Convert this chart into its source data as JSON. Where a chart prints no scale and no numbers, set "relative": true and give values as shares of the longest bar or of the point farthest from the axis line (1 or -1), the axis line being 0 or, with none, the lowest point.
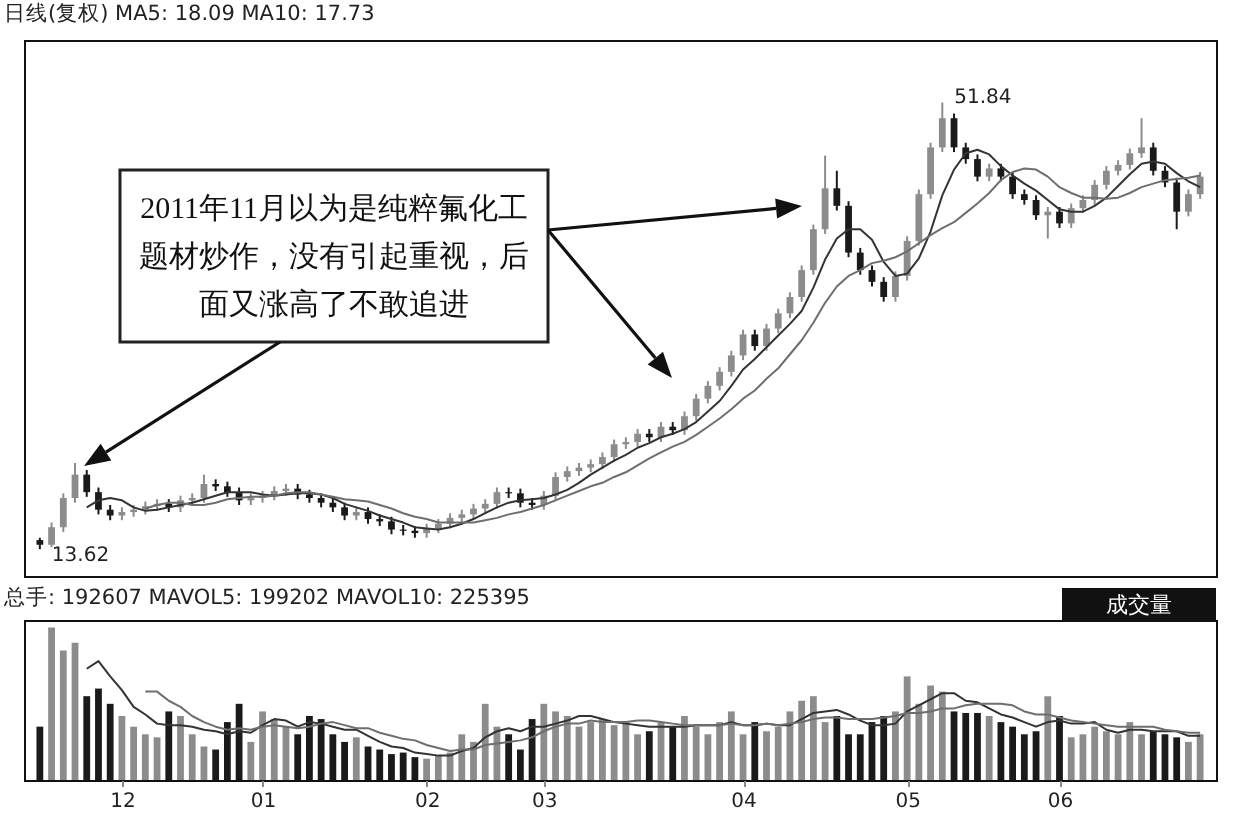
{
  "chart_data": [
    {
      "type": "candlestick",
      "title": "日线(复权) MA5: 18.09 MA10: 17.73",
      "tick_labels": false,
      "categories": [
        null,
        null,
        null,
        null,
        null,
        null,
        null,
        "12",
        null,
        null,
        null,
        null,
        null,
        null,
        null,
        null,
        null,
        null,
        null,
        "01",
        null,
        null,
        null,
        null,
        null,
        null,
        null,
        null,
        null,
        null,
        null,
        null,
        null,
        "02",
        null,
        null,
        null,
        null,
        null,
        null,
        null,
        null,
        null,
        "03",
        null,
        null,
        null,
        null,
        null,
        null,
        null,
        null,
        null,
        null,
        null,
        null,
        null,
        null,
        null,
        null,
        "04",
        null,
        null,
        null,
        null,
        null,
        null,
        null,
        null,
        null,
        null,
        null,
        null,
        null,
        "05",
        null,
        null,
        null,
        null,
        null,
        null,
        null,
        null,
        null,
        null,
        null,
        null,
        "06",
        null,
        null,
        null,
        null,
        null,
        null,
        null,
        null,
        null,
        null,
        null,
        null
      ],
      "ohlc": [
        [
          14.4,
          14.6,
          13.62,
          14.0
        ],
        [
          14.0,
          15.9,
          13.8,
          15.5
        ],
        [
          15.5,
          18.4,
          15.1,
          18.0
        ],
        [
          18.0,
          21.0,
          17.6,
          20.0
        ],
        [
          20.0,
          20.4,
          18.1,
          18.5
        ],
        [
          18.5,
          18.9,
          16.6,
          17.0
        ],
        [
          17.0,
          17.4,
          16.1,
          16.5
        ],
        [
          16.5,
          17.2,
          16.1,
          16.8
        ],
        [
          16.8,
          17.4,
          16.4,
          17.0
        ],
        [
          17.0,
          17.7,
          16.6,
          17.3
        ],
        [
          17.3,
          17.9,
          16.9,
          17.5
        ],
        [
          17.5,
          17.9,
          16.8,
          17.2
        ],
        [
          17.2,
          18.2,
          16.8,
          17.8
        ],
        [
          17.8,
          18.4,
          17.4,
          18.0
        ],
        [
          18.0,
          20.0,
          17.6,
          19.2
        ],
        [
          19.2,
          19.6,
          18.6,
          19.0
        ],
        [
          19.0,
          19.4,
          18.1,
          18.5
        ],
        [
          18.5,
          18.9,
          17.4,
          17.8
        ],
        [
          17.8,
          18.4,
          17.4,
          18.0
        ],
        [
          18.0,
          18.6,
          17.6,
          18.2
        ],
        [
          18.2,
          19.0,
          17.8,
          18.6
        ],
        [
          18.6,
          19.2,
          18.2,
          18.8
        ],
        [
          18.8,
          19.2,
          17.9,
          18.3
        ],
        [
          18.3,
          18.7,
          17.6,
          18.0
        ],
        [
          18.0,
          18.4,
          17.2,
          17.6
        ],
        [
          17.6,
          18.0,
          16.8,
          17.2
        ],
        [
          17.2,
          17.6,
          16.1,
          16.5
        ],
        [
          16.5,
          17.2,
          16.1,
          16.8
        ],
        [
          16.8,
          17.2,
          15.8,
          16.2
        ],
        [
          16.2,
          16.6,
          15.6,
          16.0
        ],
        [
          16.0,
          16.4,
          14.9,
          15.3
        ],
        [
          15.3,
          15.7,
          14.8,
          15.2
        ],
        [
          15.2,
          15.6,
          14.6,
          15.0
        ],
        [
          15.0,
          15.8,
          14.6,
          15.4
        ],
        [
          15.4,
          16.2,
          15.0,
          15.8
        ],
        [
          15.8,
          16.7,
          15.4,
          16.3
        ],
        [
          16.3,
          17.0,
          15.9,
          16.6
        ],
        [
          16.6,
          17.5,
          16.2,
          17.1
        ],
        [
          17.1,
          17.9,
          16.7,
          17.5
        ],
        [
          17.5,
          18.9,
          17.1,
          18.5
        ],
        [
          18.5,
          18.9,
          18.0,
          18.4
        ],
        [
          18.4,
          18.8,
          17.2,
          17.6
        ],
        [
          17.6,
          18.0,
          17.0,
          17.4
        ],
        [
          17.4,
          18.6,
          17.0,
          18.2
        ],
        [
          18.2,
          20.2,
          17.8,
          19.8
        ],
        [
          19.8,
          20.7,
          19.4,
          20.3
        ],
        [
          20.3,
          21.0,
          19.9,
          20.6
        ],
        [
          20.6,
          21.3,
          20.2,
          20.9
        ],
        [
          20.9,
          21.9,
          20.5,
          21.5
        ],
        [
          21.5,
          23.0,
          21.1,
          22.6
        ],
        [
          22.6,
          23.2,
          22.2,
          22.8
        ],
        [
          22.8,
          23.9,
          22.4,
          23.5
        ],
        [
          23.5,
          23.9,
          22.8,
          23.2
        ],
        [
          23.2,
          24.5,
          22.8,
          24.1
        ],
        [
          24.1,
          24.5,
          23.4,
          23.8
        ],
        [
          23.8,
          25.4,
          23.4,
          25.0
        ],
        [
          25.0,
          26.9,
          24.6,
          26.5
        ],
        [
          26.5,
          28.0,
          26.1,
          27.6
        ],
        [
          27.6,
          29.2,
          27.2,
          28.8
        ],
        [
          28.8,
          30.6,
          28.4,
          30.2
        ],
        [
          30.2,
          32.4,
          29.8,
          32.0
        ],
        [
          32.0,
          32.4,
          30.6,
          31.0
        ],
        [
          31.0,
          32.9,
          30.6,
          32.5
        ],
        [
          32.5,
          34.2,
          32.1,
          33.8
        ],
        [
          33.8,
          35.6,
          33.4,
          35.2
        ],
        [
          35.2,
          37.9,
          34.8,
          37.5
        ],
        [
          37.5,
          41.4,
          37.1,
          41.0
        ],
        [
          41.0,
          47.3,
          40.6,
          44.5
        ],
        [
          44.5,
          46.0,
          42.6,
          43.0
        ],
        [
          43.0,
          43.4,
          38.6,
          39.0
        ],
        [
          39.0,
          39.4,
          37.1,
          37.5
        ],
        [
          37.5,
          37.9,
          36.1,
          36.5
        ],
        [
          36.5,
          36.9,
          34.8,
          35.2
        ],
        [
          35.2,
          37.4,
          34.8,
          37.0
        ],
        [
          37.0,
          40.4,
          36.6,
          40.0
        ],
        [
          40.0,
          44.4,
          39.6,
          44.0
        ],
        [
          44.0,
          48.4,
          43.6,
          48.0
        ],
        [
          48.0,
          51.84,
          47.6,
          50.5
        ],
        [
          50.5,
          50.9,
          47.6,
          48.0
        ],
        [
          48.0,
          48.4,
          46.6,
          47.0
        ],
        [
          47.0,
          47.4,
          45.1,
          45.5
        ],
        [
          45.5,
          46.6,
          45.1,
          46.2
        ],
        [
          46.2,
          46.6,
          45.1,
          45.5
        ],
        [
          45.5,
          45.9,
          43.6,
          44.0
        ],
        [
          44.0,
          44.4,
          43.1,
          43.5
        ],
        [
          43.5,
          43.9,
          41.8,
          42.2
        ],
        [
          42.2,
          42.9,
          40.2,
          42.5
        ],
        [
          42.5,
          42.9,
          41.1,
          41.5
        ],
        [
          41.5,
          43.2,
          41.1,
          42.8
        ],
        [
          42.8,
          43.9,
          42.4,
          43.5
        ],
        [
          43.5,
          45.2,
          43.1,
          44.8
        ],
        [
          44.8,
          46.4,
          44.4,
          46.0
        ],
        [
          46.0,
          46.9,
          45.6,
          46.5
        ],
        [
          46.5,
          47.9,
          46.1,
          47.5
        ],
        [
          47.5,
          50.5,
          47.1,
          48.0
        ],
        [
          48.0,
          48.4,
          45.6,
          46.0
        ],
        [
          46.0,
          46.4,
          44.6,
          45.0
        ],
        [
          45.0,
          45.4,
          41.0,
          42.5
        ],
        [
          42.5,
          44.4,
          42.1,
          44.0
        ],
        [
          44.0,
          45.9,
          43.6,
          45.5
        ]
      ],
      "colors": [
        "#1a1a1a",
        "#8c8c8c",
        "#8c8c8c",
        "#8c8c8c",
        "#1a1a1a",
        "#1a1a1a",
        "#1a1a1a",
        "#8c8c8c",
        "#8c8c8c",
        "#8c8c8c",
        "#8c8c8c",
        "#1a1a1a",
        "#8c8c8c",
        "#8c8c8c",
        "#8c8c8c",
        "#1a1a1a",
        "#1a1a1a",
        "#1a1a1a",
        "#8c8c8c",
        "#8c8c8c",
        "#8c8c8c",
        "#8c8c8c",
        "#1a1a1a",
        "#1a1a1a",
        "#1a1a1a",
        "#1a1a1a",
        "#1a1a1a",
        "#8c8c8c",
        "#1a1a1a",
        "#1a1a1a",
        "#1a1a1a",
        "#1a1a1a",
        "#1a1a1a",
        "#8c8c8c",
        "#8c8c8c",
        "#8c8c8c",
        "#8c8c8c",
        "#8c8c8c",
        "#8c8c8c",
        "#8c8c8c",
        "#1a1a1a",
        "#1a1a1a",
        "#1a1a1a",
        "#8c8c8c",
        "#8c8c8c",
        "#8c8c8c",
        "#8c8c8c",
        "#8c8c8c",
        "#8c8c8c",
        "#8c8c8c",
        "#8c8c8c",
        "#8c8c8c",
        "#1a1a1a",
        "#8c8c8c",
        "#1a1a1a",
        "#8c8c8c",
        "#8c8c8c",
        "#8c8c8c",
        "#8c8c8c",
        "#8c8c8c",
        "#8c8c8c",
        "#1a1a1a",
        "#8c8c8c",
        "#8c8c8c",
        "#8c8c8c",
        "#8c8c8c",
        "#8c8c8c",
        "#8c8c8c",
        "#1a1a1a",
        "#1a1a1a",
        "#1a1a1a",
        "#1a1a1a",
        "#1a1a1a",
        "#8c8c8c",
        "#8c8c8c",
        "#8c8c8c",
        "#8c8c8c",
        "#8c8c8c",
        "#1a1a1a",
        "#1a1a1a",
        "#1a1a1a",
        "#8c8c8c",
        "#1a1a1a",
        "#1a1a1a",
        "#1a1a1a",
        "#1a1a1a",
        "#8c8c8c",
        "#1a1a1a",
        "#8c8c8c",
        "#8c8c8c",
        "#8c8c8c",
        "#8c8c8c",
        "#8c8c8c",
        "#8c8c8c",
        "#8c8c8c",
        "#1a1a1a",
        "#1a1a1a",
        "#1a1a1a",
        "#8c8c8c",
        "#8c8c8c"
      ],
      "series": [
        {
          "type": "line",
          "color": "#333333",
          "values": [
            null,
            null,
            null,
            null,
            17.2,
            17.8,
            18.0,
            17.8,
            17.2,
            16.9,
            17.0,
            17.2,
            17.4,
            17.6,
            17.9,
            18.2,
            18.5,
            18.5,
            18.5,
            18.3,
            18.2,
            18.3,
            18.4,
            18.4,
            18.3,
            18.0,
            17.5,
            17.2,
            16.9,
            16.5,
            16.2,
            15.9,
            15.5,
            15.4,
            15.3,
            15.5,
            15.8,
            16.2,
            16.7,
            17.2,
            17.6,
            17.8,
            17.9,
            18.0,
            18.3,
            18.7,
            19.3,
            20.0,
            20.6,
            21.2,
            21.7,
            22.3,
            22.7,
            23.2,
            23.5,
            23.9,
            24.5,
            25.4,
            26.3,
            27.6,
            29.0,
            29.9,
            30.9,
            31.9,
            32.9,
            34.0,
            36.0,
            38.4,
            40.2,
            41.0,
            41.0,
            40.1,
            38.2,
            37.0,
            37.2,
            38.5,
            40.8,
            43.9,
            46.1,
            47.5,
            47.8,
            47.4,
            46.4,
            45.6,
            44.9,
            44.3,
            43.5,
            42.7,
            42.5,
            42.5,
            43.0,
            43.7,
            44.7,
            45.7,
            46.6,
            46.8,
            46.6,
            45.8,
            45.1,
            44.6
          ]
        },
        {
          "type": "line",
          "color": "#6e6e6e",
          "values": [
            null,
            null,
            null,
            null,
            null,
            null,
            null,
            null,
            null,
            17.1,
            17.4,
            17.6,
            17.6,
            17.4,
            17.4,
            17.6,
            17.9,
            18.0,
            18.1,
            18.1,
            18.2,
            18.4,
            18.5,
            18.5,
            18.3,
            18.1,
            17.9,
            17.8,
            17.7,
            17.4,
            17.1,
            16.7,
            16.4,
            16.2,
            15.9,
            15.9,
            15.9,
            15.9,
            16.1,
            16.3,
            16.6,
            16.8,
            17.1,
            17.4,
            17.8,
            18.2,
            18.6,
            19.0,
            19.3,
            19.8,
            20.2,
            20.8,
            21.4,
            21.9,
            22.4,
            22.8,
            23.4,
            24.1,
            24.8,
            25.6,
            26.5,
            27.2,
            28.2,
            29.1,
            30.3,
            31.5,
            33.0,
            34.7,
            36.1,
            37.0,
            37.5,
            38.1,
            38.3,
            38.6,
            39.1,
            39.8,
            40.5,
            41.1,
            41.6,
            42.4,
            43.2,
            44.1,
            45.2,
            45.9,
            46.2,
            46.1,
            45.5,
            44.6,
            44.1,
            43.7,
            43.7,
            43.6,
            43.7,
            44.1,
            44.6,
            44.9,
            45.2,
            45.3,
            45.4,
            45.6
          ]
        }
      ],
      "annotations": [
        "2011年11月以为是纯粹氟化工题材炒作，没有引起重视，后面又涨高了不敢追进",
        "13.62",
        "51.84"
      ]
    },
    {
      "type": "bar",
      "relative": true,
      "title": "总手: 192607 MAVOL5: 199202 MAVOL10: 225395",
      "tick_labels": "x",
      "categories": [
        null,
        null,
        null,
        null,
        null,
        null,
        null,
        "12",
        null,
        null,
        null,
        null,
        null,
        null,
        null,
        null,
        null,
        null,
        null,
        "01",
        null,
        null,
        null,
        null,
        null,
        null,
        null,
        null,
        null,
        null,
        null,
        null,
        null,
        "02",
        null,
        null,
        null,
        null,
        null,
        null,
        null,
        null,
        null,
        "03",
        null,
        null,
        null,
        null,
        null,
        null,
        null,
        null,
        null,
        null,
        null,
        null,
        null,
        null,
        null,
        null,
        "04",
        null,
        null,
        null,
        null,
        null,
        null,
        null,
        null,
        null,
        null,
        null,
        null,
        null,
        "05",
        null,
        null,
        null,
        null,
        null,
        null,
        null,
        null,
        null,
        null,
        null,
        null,
        "06",
        null,
        null,
        null,
        null,
        null,
        null,
        null,
        null,
        null,
        null,
        null,
        null
      ],
      "series": [
        {
          "type": "bar",
          "values": [
            0.35,
            1,
            0.85,
            0.9,
            0.55,
            0.6,
            0.5,
            0.42,
            0.35,
            0.3,
            0.28,
            0.45,
            0.42,
            0.3,
            0.22,
            0.2,
            0.38,
            0.5,
            0.25,
            0.45,
            0.4,
            0.35,
            0.3,
            0.42,
            0.4,
            0.3,
            0.25,
            0.28,
            0.22,
            0.2,
            0.17,
            0.18,
            0.15,
            0.14,
            0.16,
            0.18,
            0.3,
            0.25,
            0.5,
            0.35,
            0.3,
            0.2,
            0.4,
            0.5,
            0.45,
            0.42,
            0.35,
            0.38,
            0.4,
            0.36,
            0.38,
            0.3,
            0.32,
            0.38,
            0.35,
            0.42,
            0.35,
            0.3,
            0.38,
            0.45,
            0.3,
            0.38,
            0.32,
            0.35,
            0.45,
            0.52,
            0.55,
            0.38,
            0.42,
            0.3,
            0.3,
            0.38,
            0.42,
            0.45,
            0.68,
            0.5,
            0.62,
            0.58,
            0.45,
            0.44,
            0.44,
            0.42,
            0.38,
            0.35,
            0.3,
            0.32,
            0.55,
            0.42,
            0.28,
            0.3,
            0.35,
            0.32,
            0.3,
            0.38,
            0.3,
            0.32,
            0.3,
            0.28,
            0.25,
            0.3
          ],
          "colors": [
            "#1a1a1a",
            "#8c8c8c",
            "#8c8c8c",
            "#8c8c8c",
            "#1a1a1a",
            "#1a1a1a",
            "#1a1a1a",
            "#8c8c8c",
            "#8c8c8c",
            "#8c8c8c",
            "#8c8c8c",
            "#1a1a1a",
            "#8c8c8c",
            "#8c8c8c",
            "#8c8c8c",
            "#1a1a1a",
            "#1a1a1a",
            "#1a1a1a",
            "#8c8c8c",
            "#8c8c8c",
            "#8c8c8c",
            "#8c8c8c",
            "#1a1a1a",
            "#1a1a1a",
            "#1a1a1a",
            "#1a1a1a",
            "#1a1a1a",
            "#8c8c8c",
            "#1a1a1a",
            "#1a1a1a",
            "#1a1a1a",
            "#1a1a1a",
            "#1a1a1a",
            "#8c8c8c",
            "#8c8c8c",
            "#8c8c8c",
            "#8c8c8c",
            "#8c8c8c",
            "#8c8c8c",
            "#8c8c8c",
            "#1a1a1a",
            "#1a1a1a",
            "#1a1a1a",
            "#8c8c8c",
            "#8c8c8c",
            "#8c8c8c",
            "#8c8c8c",
            "#8c8c8c",
            "#8c8c8c",
            "#8c8c8c",
            "#8c8c8c",
            "#8c8c8c",
            "#1a1a1a",
            "#8c8c8c",
            "#1a1a1a",
            "#8c8c8c",
            "#8c8c8c",
            "#8c8c8c",
            "#8c8c8c",
            "#8c8c8c",
            "#8c8c8c",
            "#1a1a1a",
            "#8c8c8c",
            "#8c8c8c",
            "#8c8c8c",
            "#8c8c8c",
            "#8c8c8c",
            "#8c8c8c",
            "#1a1a1a",
            "#1a1a1a",
            "#1a1a1a",
            "#1a1a1a",
            "#1a1a1a",
            "#8c8c8c",
            "#8c8c8c",
            "#8c8c8c",
            "#8c8c8c",
            "#8c8c8c",
            "#1a1a1a",
            "#1a1a1a",
            "#1a1a1a",
            "#8c8c8c",
            "#1a1a1a",
            "#1a1a1a",
            "#1a1a1a",
            "#1a1a1a",
            "#8c8c8c",
            "#1a1a1a",
            "#8c8c8c",
            "#8c8c8c",
            "#8c8c8c",
            "#8c8c8c",
            "#8c8c8c",
            "#8c8c8c",
            "#8c8c8c",
            "#1a1a1a",
            "#1a1a1a",
            "#1a1a1a",
            "#8c8c8c",
            "#8c8c8c"
          ]
        },
        {
          "type": "line",
          "color": "#333333",
          "values": [
            null,
            null,
            null,
            null,
            0.73,
            0.78,
            0.68,
            0.59,
            0.48,
            0.43,
            0.37,
            0.36,
            0.36,
            0.35,
            0.33,
            0.32,
            0.3,
            0.32,
            0.31,
            0.36,
            0.4,
            0.39,
            0.35,
            0.38,
            0.37,
            0.35,
            0.33,
            0.33,
            0.29,
            0.25,
            0.22,
            0.21,
            0.18,
            0.17,
            0.16,
            0.16,
            0.19,
            0.21,
            0.28,
            0.32,
            0.34,
            0.32,
            0.35,
            0.35,
            0.37,
            0.39,
            0.42,
            0.42,
            0.4,
            0.38,
            0.37,
            0.36,
            0.35,
            0.35,
            0.35,
            0.35,
            0.36,
            0.36,
            0.36,
            0.38,
            0.36,
            0.36,
            0.37,
            0.36,
            0.36,
            0.4,
            0.44,
            0.45,
            0.46,
            0.43,
            0.39,
            0.36,
            0.36,
            0.37,
            0.45,
            0.49,
            0.53,
            0.57,
            0.57,
            0.52,
            0.51,
            0.47,
            0.43,
            0.41,
            0.38,
            0.35,
            0.38,
            0.39,
            0.37,
            0.37,
            0.38,
            0.33,
            0.31,
            0.33,
            0.33,
            0.32,
            0.32,
            0.32,
            0.29,
            0.29
          ]
        },
        {
          "type": "line",
          "color": "#6e6e6e",
          "values": [
            null,
            null,
            null,
            null,
            null,
            null,
            null,
            null,
            null,
            0.58,
            0.58,
            0.52,
            0.48,
            0.42,
            0.38,
            0.35,
            0.33,
            0.34,
            0.33,
            0.35,
            0.36,
            0.35,
            0.34,
            0.35,
            0.37,
            0.38,
            0.36,
            0.34,
            0.34,
            0.31,
            0.29,
            0.27,
            0.26,
            0.23,
            0.21,
            0.19,
            0.2,
            0.2,
            0.23,
            0.24,
            0.25,
            0.26,
            0.28,
            0.32,
            0.35,
            0.37,
            0.37,
            0.39,
            0.38,
            0.38,
            0.38,
            0.39,
            0.39,
            0.38,
            0.37,
            0.36,
            0.36,
            0.36,
            0.36,
            0.37,
            0.36,
            0.36,
            0.37,
            0.36,
            0.37,
            0.38,
            0.4,
            0.41,
            0.41,
            0.4,
            0.4,
            0.4,
            0.41,
            0.42,
            0.44,
            0.44,
            0.45,
            0.47,
            0.47,
            0.49,
            0.5,
            0.5,
            0.5,
            0.49,
            0.45,
            0.43,
            0.43,
            0.41,
            0.39,
            0.38,
            0.37,
            0.36,
            0.35,
            0.35,
            0.35,
            0.35,
            0.33,
            0.32,
            0.31,
            0.31
          ]
        }
      ],
      "annotations": [
        "成交量"
      ]
    }
  ]
}
